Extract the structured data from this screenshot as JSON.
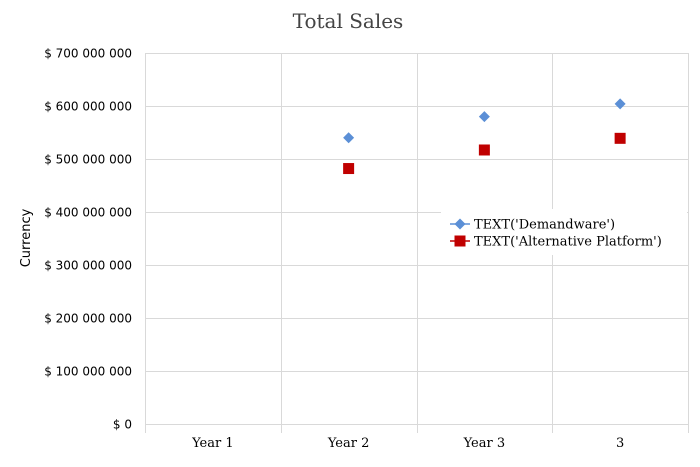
{
  "chart_data": {
    "type": "scatter",
    "title": "Total Sales",
    "xlabel": "",
    "ylabel": "Currency",
    "categories": [
      "Year 1",
      "Year 2",
      "Year 3",
      "3"
    ],
    "yticks": [
      "$ 0",
      "$ 100 000 000",
      "$ 200 000 000",
      "$ 300 000 000",
      "$ 400 000 000",
      "$ 500 000 000",
      "$ 600 000 000",
      "$ 700 000 000"
    ],
    "ylim": [
      0,
      700000000
    ],
    "grid": true,
    "legend_position": "right",
    "series": [
      {
        "name": "TEXT('Demandware')",
        "marker": "diamond",
        "color": "#5B8FD6",
        "values": [
          null,
          540000000,
          580000000,
          604000000
        ]
      },
      {
        "name": "TEXT('Alternative Platform')",
        "marker": "square",
        "color": "#C00000",
        "values": [
          null,
          482000000,
          517000000,
          539000000
        ]
      }
    ]
  }
}
